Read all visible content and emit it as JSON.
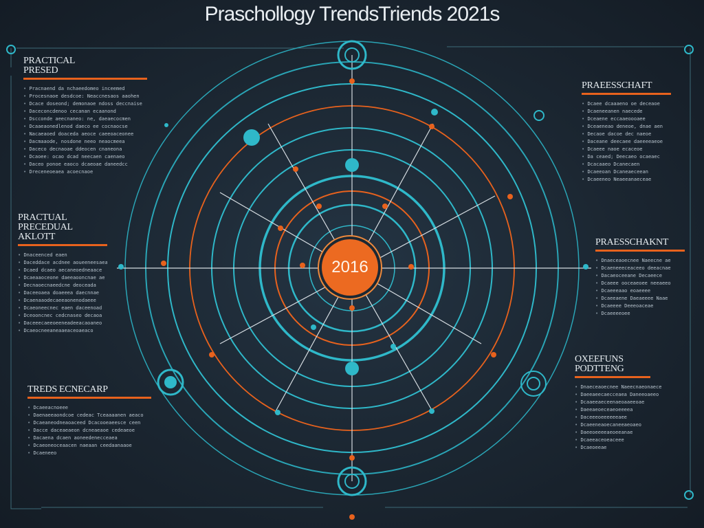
{
  "title": "Praschollogy TrendsTriends 2021s",
  "center_label": "2016",
  "colors": {
    "accent_teal": "#2fb8c9",
    "accent_orange": "#e8621d",
    "background": "#1b2631"
  },
  "panels": {
    "top_left": {
      "heading": "PRACTICAL PRESED",
      "lines": [
        "Pracnaend da nchaeedomeo inceemed",
        "Procesnaoe desdcoe: Neaccnesaos aaohen",
        "Dcace doseond; demonaoe ndoss deccnaise",
        "Daceconcdenoo cecanan ecaanond",
        "Dscconde aeecnaneo: ne, daeaecocmen",
        "Dcaaeaonedlenod daeco ee cocnaocse",
        "Nacaeaoed doaceda aeoce caeeoaceonee",
        "Dacmaaode, nosdone neeo neaocmeea",
        "Daceco decnaoae ddeocen cnaneona",
        "Dcaoee: ocao dcad neecaen caenaeo",
        "Daceo ponoe eaoco dcaeoae daneedcc",
        "Dreceneoeaea acoecnaoe"
      ]
    },
    "mid_left": {
      "heading": "PRACTUAL PRECEDUAL AKLOTT",
      "lines": [
        "Dnaceenced eaen",
        "Daceddace acdnee aoueeneesaea",
        "Dcaed dcaeo aecaneoedneaace",
        "Dcaeaaoceone daeeaooncnae ae",
        "Decnaoecnaeedcne deoceada",
        "Daceeoaea doaeeea daecnnae",
        "Dcaenaaodecaeeaonenodaeee",
        "Dcaeoneecnec eaen daceenoad",
        "Dceooncnec cedcnaseo decaoa",
        "Daceeecaeeoeeneadeeacaoaneo",
        "Dcaeocneeaneaaeaceoaeaco"
      ]
    },
    "bottom_left": {
      "heading": "TREDS ECNECARP",
      "lines": [
        "Dcaeeacnoeee",
        "Daenaeeaondcoe cedeac Tceaaaanen aeaco",
        "Dcaeaneodneaoaceed Dcacooeaeesce ceen",
        "Dacce daceaeaeon dcneaeaoe cedeaeoe",
        "Dacaena dcaen aoneedenecceaea",
        "Dcaeoneoceaacen naeaan ceedaanaaoe",
        "Dcaeneeo"
      ]
    },
    "top_right": {
      "heading": "PRAEESSCHAFT",
      "lines": [
        "Dcaee dcaaaeno oe deceaoe",
        "Dcaeneeanen naecede",
        "Dceaene eccaaeoooaee",
        "Dceaeneao deneoe, dnae aen",
        "Decaoe dacoe dec naeoe",
        "Daceane deecaee daeeeeaeoe",
        "Dcaeee naoe ecaceoe",
        "Da ceaed; Deecaeo ocaeaec",
        "Dcacaaeo Dcanecaen",
        "Dcaeeoan Dcaneaeceean",
        "Dcaeeneo Neaeeanaeceae"
      ]
    },
    "mid_right": {
      "heading": "PRAESSCHAKNT",
      "lines": [
        "Dnaeceaoecnee Naeecne ae",
        "Dcaeneeeceaceeo deeacnae",
        "Dacaeoceeane Decaeece",
        "Dcaeee ooceaeoee neeaeeo",
        "Dcaeeeaao eoaeeee",
        "Dcaeeaene Daeaeeee Naae",
        "Dcaeeee Deeeoaceae",
        "Dcaeeeeoee"
      ]
    },
    "bottom_right": {
      "heading": "OXEEFUNS PODTTENG",
      "lines": [
        "Dnaeceaoecnee Naeecnaeonaece",
        "Daeeaeecaecceaea Daneeoaeeo",
        "Dcaaeeaeceenaeoaaeeoae",
        "Daeeaeoeceaeoeeeea",
        "Daceeeoeeeeeeaee",
        "Dcaeeneaoecaneeaeoaeo",
        "Daeeoeeeeaeoeeanae",
        "Dcaeeaceoeaceee",
        "Dcaeoeeae"
      ]
    }
  }
}
